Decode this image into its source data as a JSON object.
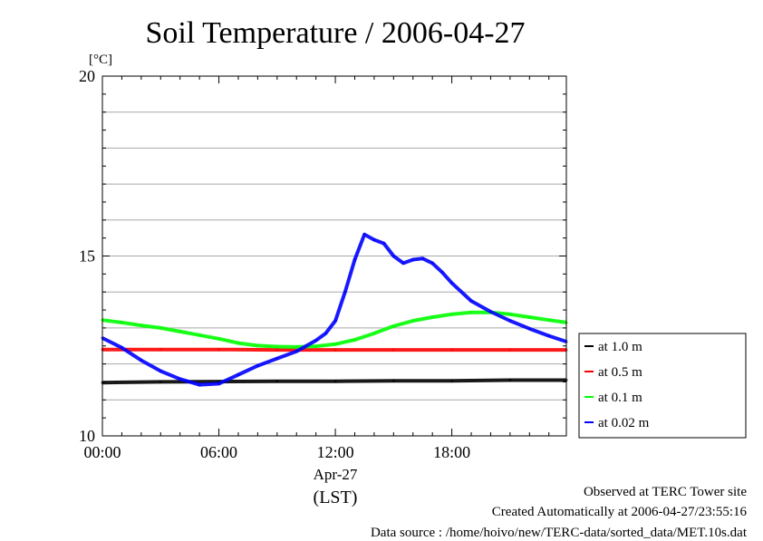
{
  "chart_data": {
    "type": "line",
    "title": "Soil Temperature / 2006-04-27",
    "ylabel": "[°C]",
    "xlabel": "(LST)",
    "date_label": "Apr-27",
    "ylim": [
      10,
      20
    ],
    "xlim": [
      0,
      23.9
    ],
    "yticks": [
      10,
      15,
      20
    ],
    "ytick_labels": [
      "10",
      "15",
      "20"
    ],
    "xticks": [
      0,
      6,
      12,
      18
    ],
    "xtick_labels": [
      "00:00",
      "06:00",
      "12:00",
      "18:00"
    ],
    "grid": true,
    "legend_position": "right",
    "series": [
      {
        "name": "at 1.0 m",
        "color": "#000000",
        "x": [
          0,
          3,
          6,
          9,
          12,
          15,
          18,
          21,
          23.9
        ],
        "y": [
          11.48,
          11.5,
          11.51,
          11.52,
          11.52,
          11.53,
          11.53,
          11.55,
          11.55
        ]
      },
      {
        "name": "at 0.5 m",
        "color": "#ff0000",
        "x": [
          0,
          3,
          6,
          9,
          12,
          15,
          18,
          21,
          23.9
        ],
        "y": [
          12.4,
          12.4,
          12.4,
          12.39,
          12.39,
          12.39,
          12.39,
          12.39,
          12.39
        ]
      },
      {
        "name": "at 0.1 m",
        "color": "#00ff00",
        "x": [
          0,
          1,
          2,
          3,
          4,
          5,
          6,
          7,
          8,
          9,
          10,
          11,
          12,
          13,
          14,
          15,
          16,
          17,
          18,
          19,
          20,
          21,
          22,
          23,
          23.9
        ],
        "y": [
          13.22,
          13.15,
          13.07,
          13.0,
          12.9,
          12.8,
          12.7,
          12.58,
          12.51,
          12.48,
          12.47,
          12.49,
          12.55,
          12.67,
          12.85,
          13.05,
          13.2,
          13.3,
          13.38,
          13.43,
          13.43,
          13.38,
          13.3,
          13.22,
          13.15
        ]
      },
      {
        "name": "at 0.02 m",
        "color": "#0000ff",
        "x": [
          0,
          1,
          2,
          3,
          4,
          5,
          6,
          7,
          8,
          9,
          10,
          11,
          11.5,
          12,
          12.5,
          13,
          13.5,
          14,
          14.5,
          15,
          15.5,
          16,
          16.5,
          17,
          17.5,
          18,
          19,
          20,
          21,
          22,
          23,
          23.9
        ],
        "y": [
          12.72,
          12.45,
          12.1,
          11.8,
          11.58,
          11.42,
          11.45,
          11.7,
          11.95,
          12.15,
          12.35,
          12.65,
          12.85,
          13.2,
          14.0,
          14.9,
          15.6,
          15.45,
          15.35,
          15.0,
          14.8,
          14.9,
          14.93,
          14.8,
          14.55,
          14.25,
          13.75,
          13.45,
          13.2,
          12.98,
          12.78,
          12.62
        ]
      }
    ]
  },
  "footer": {
    "line1": "Observed at TERC Tower site",
    "line2": "Created Automatically at 2006-04-27/23:55:16",
    "line3": "Data source : /home/hoivo/new/TERC-data/sorted_data/MET.10s.dat"
  }
}
